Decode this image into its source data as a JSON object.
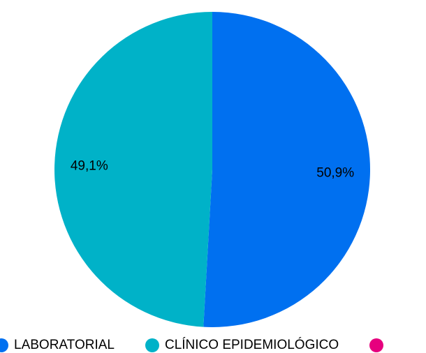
{
  "chart_data": {
    "type": "pie",
    "title": "",
    "labels": [
      "LABORATORIAL",
      "CLÍNICO EPIDEMIOLÓGICO",
      ""
    ],
    "values": [
      50.9,
      49.1,
      0
    ],
    "value_labels": [
      "50,9%",
      "49,1%",
      ""
    ],
    "colors": [
      "#0070F0",
      "#00B2C8",
      "#E6007E"
    ],
    "start_angle_deg": 0,
    "direction": "clockwise",
    "legend_position": "bottom"
  }
}
